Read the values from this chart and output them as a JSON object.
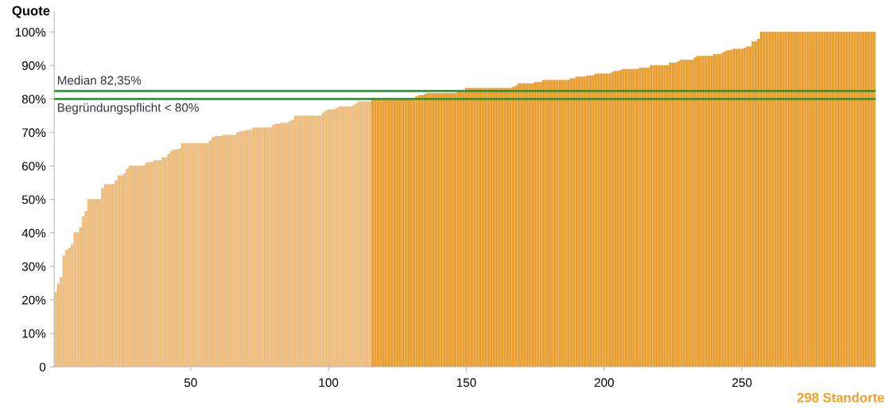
{
  "chart_data": {
    "type": "bar",
    "xlabel": "298 Standorte",
    "ylabel": "Quote",
    "xlim": [
      0.5,
      298.5
    ],
    "xticks": [
      50,
      100,
      150,
      200,
      250
    ],
    "ylim": [
      0,
      106
    ],
    "yticks": [
      0,
      {
        "value": 10,
        "label": "10%"
      },
      {
        "value": 20,
        "label": "20%"
      },
      {
        "value": 30,
        "label": "30%"
      },
      {
        "value": 40,
        "label": "40%"
      },
      {
        "value": 50,
        "label": "50%"
      },
      {
        "value": 60,
        "label": "60%"
      },
      {
        "value": 70,
        "label": "70%"
      },
      {
        "value": 80,
        "label": "80%"
      },
      {
        "value": 90,
        "label": "90%"
      },
      {
        "value": 100,
        "label": "100%"
      }
    ],
    "grid": false,
    "legend": false,
    "ref_lines": [
      {
        "axis": "y",
        "value": 82.35,
        "label": "Median 82,35%",
        "color": "#22a030"
      },
      {
        "axis": "y",
        "value": 80,
        "label": "Begründungspflicht < 80%",
        "color": "#22a030"
      }
    ],
    "series": [
      {
        "color": "#f4c07c",
        "x": [
          1,
          2,
          3,
          4,
          5,
          6,
          7,
          8,
          9,
          10,
          11,
          12,
          13,
          14,
          15,
          16,
          17,
          18,
          19,
          20,
          21,
          22,
          23,
          24,
          25,
          26,
          27,
          28,
          29,
          30,
          31,
          32,
          33,
          34,
          35,
          36,
          37,
          38,
          39,
          40,
          41,
          42,
          43,
          44,
          45,
          46,
          47,
          48,
          49,
          50,
          51,
          52,
          53,
          54,
          55,
          56,
          57,
          58,
          59,
          60,
          61,
          62,
          63,
          64,
          65,
          66,
          67,
          68,
          69,
          70,
          71,
          72,
          73,
          74,
          75,
          76,
          77,
          78,
          79,
          80,
          81,
          82,
          83,
          84,
          85,
          86,
          87,
          88,
          89,
          90,
          91,
          92,
          93,
          94,
          95,
          96,
          97,
          98,
          99,
          100,
          101,
          102,
          103,
          104,
          105,
          106,
          107,
          108,
          109,
          110,
          111,
          112,
          113,
          114,
          115
        ],
        "values": [
          22.3,
          24.8,
          26.7,
          33.2,
          34.8,
          35.4,
          36.5,
          40.1,
          40.1,
          41.6,
          44.8,
          46.4,
          50,
          50,
          50,
          50,
          50,
          53.3,
          54.5,
          54.5,
          54.5,
          54.5,
          55.6,
          57.1,
          57.1,
          57.7,
          59.1,
          60,
          60,
          60,
          60,
          60,
          60,
          60.9,
          61.1,
          61.1,
          61.6,
          61.6,
          61.6,
          62.5,
          62.5,
          63.5,
          64.4,
          64.8,
          64.8,
          65.1,
          66.7,
          66.7,
          66.7,
          66.7,
          66.7,
          66.7,
          66.7,
          66.7,
          66.7,
          66.7,
          67.5,
          68.5,
          68.8,
          68.8,
          68.8,
          69.2,
          69.2,
          69.2,
          69.2,
          69.2,
          69.9,
          70.3,
          70.3,
          70.6,
          70.6,
          70.9,
          71.4,
          71.4,
          71.4,
          71.4,
          71.4,
          71.4,
          71.4,
          72.2,
          72.5,
          72.5,
          72.8,
          72.8,
          72.8,
          73.3,
          73.7,
          74.9,
          74.9,
          74.9,
          74.9,
          74.9,
          74.9,
          74.9,
          74.9,
          74.9,
          74.9,
          75.8,
          76.4,
          76.8,
          76.8,
          76.8,
          77.2,
          77.7,
          77.7,
          77.7,
          77.7,
          77.7,
          78.0,
          78.5,
          79.2,
          79.2,
          79.2,
          79.2,
          79.2
        ]
      },
      {
        "color": "#f0a02a",
        "x": [
          116,
          117,
          118,
          119,
          120,
          121,
          122,
          123,
          124,
          125,
          126,
          127,
          128,
          129,
          130,
          131,
          132,
          133,
          134,
          135,
          136,
          137,
          138,
          139,
          140,
          141,
          142,
          143,
          144,
          145,
          146,
          147,
          148,
          149,
          150,
          151,
          152,
          153,
          154,
          155,
          156,
          157,
          158,
          159,
          160,
          161,
          162,
          163,
          164,
          165,
          166,
          167,
          168,
          169,
          170,
          171,
          172,
          173,
          174,
          175,
          176,
          177,
          178,
          179,
          180,
          181,
          182,
          183,
          184,
          185,
          186,
          187,
          188,
          189,
          190,
          191,
          192,
          193,
          194,
          195,
          196,
          197,
          198,
          199,
          200,
          201,
          202,
          203,
          204,
          205,
          206,
          207,
          208,
          209,
          210,
          211,
          212,
          213,
          214,
          215,
          216,
          217,
          218,
          219,
          220,
          221,
          222,
          223,
          224,
          225,
          226,
          227,
          228,
          229,
          230,
          231,
          232,
          233,
          234,
          235,
          236,
          237,
          238,
          239,
          240,
          241,
          242,
          243,
          244,
          245,
          246,
          247,
          248,
          249,
          250,
          251,
          252,
          253,
          254,
          255,
          256,
          257,
          258,
          259,
          260,
          261,
          262,
          263,
          264,
          265,
          266,
          267,
          268,
          269,
          270,
          271,
          272,
          273,
          274,
          275,
          276,
          277,
          278,
          279,
          280,
          281,
          282,
          283,
          284,
          285,
          286,
          287,
          288,
          289,
          290,
          291,
          292,
          293,
          294,
          295,
          296,
          297,
          298
        ],
        "values": [
          80,
          80,
          80,
          80,
          80,
          80,
          80,
          80,
          80,
          80,
          80,
          80,
          80,
          80,
          80,
          80,
          80.7,
          81.1,
          81.1,
          81.4,
          81.7,
          81.7,
          81.7,
          81.7,
          81.7,
          81.7,
          81.7,
          81.7,
          81.7,
          81.7,
          81.7,
          82.1,
          82.1,
          82.7,
          83.2,
          83.2,
          83.2,
          83.2,
          83.2,
          83.2,
          83.2,
          83.2,
          83.2,
          83.2,
          83.2,
          83.2,
          83.2,
          83.2,
          83.2,
          83.2,
          83.2,
          83.5,
          83.9,
          84.6,
          84.6,
          84.6,
          84.6,
          84.6,
          84.6,
          85.0,
          85.0,
          85.0,
          85.6,
          85.6,
          85.6,
          85.6,
          85.6,
          85.6,
          85.6,
          85.6,
          85.6,
          85.6,
          86.1,
          86.1,
          86.6,
          86.6,
          86.6,
          86.6,
          87.0,
          87.0,
          87.0,
          87.5,
          87.5,
          87.5,
          87.5,
          87.5,
          87.5,
          88.0,
          88.3,
          88.3,
          88.5,
          88.9,
          88.9,
          88.9,
          88.9,
          88.9,
          88.9,
          89.2,
          89.3,
          89.3,
          89.3,
          90.0,
          90.0,
          90.0,
          90.0,
          90.0,
          90.0,
          90.0,
          90.8,
          90.8,
          90.8,
          91.2,
          91.6,
          91.6,
          91.6,
          91.6,
          91.6,
          92.3,
          92.8,
          92.8,
          92.8,
          92.8,
          92.8,
          92.8,
          93.3,
          93.3,
          93.3,
          93.8,
          94.2,
          94.5,
          94.5,
          94.9,
          94.9,
          94.9,
          94.9,
          95.2,
          95.6,
          95.6,
          97.1,
          97.1,
          97.9,
          100,
          100,
          100,
          100,
          100,
          100,
          100,
          100,
          100,
          100,
          100,
          100,
          100,
          100,
          100,
          100,
          100,
          100,
          100,
          100,
          100,
          100,
          100,
          100,
          100,
          100,
          100,
          100,
          100,
          100,
          100,
          100,
          100,
          100,
          100,
          100,
          100,
          100,
          100,
          100,
          100,
          100
        ]
      }
    ]
  }
}
